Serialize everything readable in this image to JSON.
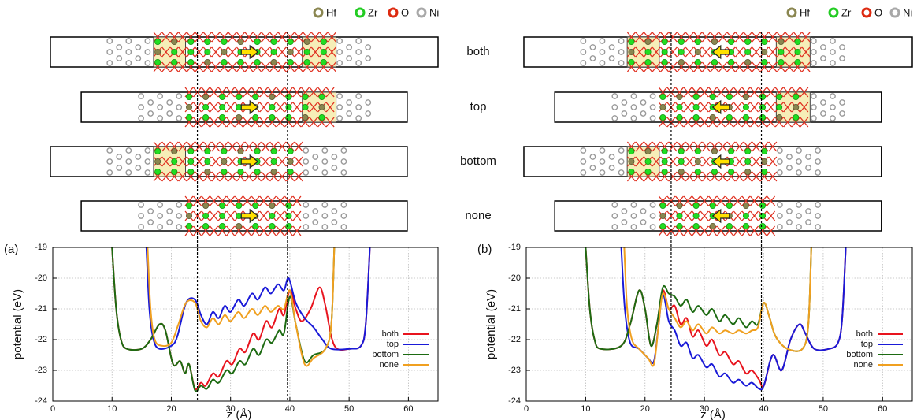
{
  "atom_legend": [
    "Hf",
    "Zr",
    "O",
    "Ni"
  ],
  "structure_labels": [
    "both",
    "top",
    "bottom",
    "none"
  ],
  "chart_data": [
    {
      "type": "line",
      "panel_label": "(a)",
      "x_label": "z (Å)",
      "y_label": "potential (eV)",
      "xlim": [
        0,
        65
      ],
      "xticks": [
        0,
        10,
        20,
        30,
        40,
        50,
        60
      ],
      "ylim": [
        -24,
        -19
      ],
      "yticks": [
        -19,
        -20,
        -21,
        -22,
        -23,
        -24
      ],
      "grid": true,
      "legend": "lower right",
      "vlines": [
        24.4,
        39.6
      ],
      "series": [
        {
          "name": "both",
          "color": "#e8141e",
          "x": [
            10,
            10.7,
            11.5,
            12.5,
            15,
            16.5,
            18,
            19,
            20.3,
            21.5,
            22.3,
            23,
            24,
            25,
            25.8,
            27,
            28,
            29.3,
            30.3,
            31.5,
            32.5,
            33.8,
            34.8,
            36,
            37,
            38.2,
            39,
            40,
            41,
            42,
            43.5,
            45,
            46,
            47,
            48,
            50,
            52,
            52.8,
            53.5
          ],
          "values": [
            -19,
            -21,
            -22,
            -22.3,
            -22.3,
            -22,
            -21.5,
            -21.7,
            -22.8,
            -22.7,
            -23.1,
            -22.8,
            -23.6,
            -23.4,
            -23.5,
            -23.1,
            -23.2,
            -22.7,
            -22.8,
            -22.3,
            -22.4,
            -21.8,
            -22,
            -21.4,
            -21.6,
            -21,
            -21.2,
            -20.4,
            -21,
            -21.4,
            -21,
            -20.3,
            -20.9,
            -21.9,
            -22.3,
            -22.3,
            -22.2,
            -21.5,
            -19
          ]
        },
        {
          "name": "top",
          "color": "#1a1ad8",
          "x": [
            15.8,
            16.3,
            17,
            18,
            20,
            21,
            22.5,
            24,
            25,
            26,
            27,
            28,
            29,
            30,
            31.3,
            32.3,
            33.6,
            34.6,
            35.8,
            36.8,
            38,
            39,
            39.8,
            41,
            42.5,
            44,
            45.5,
            47,
            50,
            52,
            52.8,
            53.5
          ],
          "values": [
            -19,
            -21,
            -22,
            -22.3,
            -22.2,
            -21.9,
            -20.8,
            -20.7,
            -21.2,
            -21.5,
            -21.1,
            -21.3,
            -20.9,
            -21.1,
            -20.7,
            -20.9,
            -20.5,
            -20.7,
            -20.3,
            -20.5,
            -20.2,
            -20.4,
            -20,
            -20.8,
            -21.3,
            -21.6,
            -22,
            -22.3,
            -22.3,
            -22.2,
            -21.5,
            -19
          ]
        },
        {
          "name": "bottom",
          "color": "#1d6b12",
          "x": [
            10,
            10.7,
            11.5,
            12.5,
            15,
            16.5,
            18,
            19,
            20.3,
            21.5,
            22.3,
            23,
            24,
            25,
            26,
            27,
            28,
            29.3,
            30.3,
            31.5,
            32.5,
            33.8,
            34.8,
            36,
            37,
            38.2,
            39,
            40,
            41,
            42.5,
            44,
            46,
            47,
            47.5
          ],
          "values": [
            -19,
            -21,
            -22,
            -22.3,
            -22.3,
            -22,
            -21.5,
            -21.7,
            -22.8,
            -22.7,
            -23.1,
            -22.8,
            -23.65,
            -23.5,
            -23.6,
            -23.3,
            -23.4,
            -23,
            -23.1,
            -22.7,
            -22.8,
            -22.3,
            -22.5,
            -22,
            -22.1,
            -21.7,
            -21.8,
            -20.6,
            -21.5,
            -22.7,
            -22.5,
            -22.3,
            -21.5,
            -19
          ]
        },
        {
          "name": "none",
          "color": "#f0a020",
          "x": [
            16,
            16.5,
            17.2,
            18.5,
            20,
            21.2,
            22.5,
            24,
            25,
            26,
            27,
            28,
            29,
            30,
            31.3,
            32.3,
            33.6,
            34.6,
            35.8,
            36.8,
            38,
            39,
            40,
            41,
            42.5,
            44,
            46,
            47,
            47.5
          ],
          "values": [
            -19,
            -21,
            -22,
            -22.2,
            -22.1,
            -21.5,
            -20.8,
            -20.8,
            -21.4,
            -21.6,
            -21.3,
            -21.5,
            -21.2,
            -21.4,
            -21.1,
            -21.3,
            -21,
            -21.2,
            -20.9,
            -21.1,
            -20.9,
            -21,
            -20.4,
            -21.5,
            -22.8,
            -22.6,
            -22.3,
            -21.5,
            -19
          ]
        }
      ]
    },
    {
      "type": "line",
      "panel_label": "(b)",
      "x_label": "z (Å)",
      "y_label": "potential (eV)",
      "xlim": [
        0,
        65
      ],
      "xticks": [
        0,
        10,
        20,
        30,
        40,
        50,
        60
      ],
      "ylim": [
        -24,
        -19
      ],
      "yticks": [
        -19,
        -20,
        -21,
        -22,
        -23,
        -24
      ],
      "grid": true,
      "legend": "lower right",
      "vlines": [
        24.4,
        39.6
      ],
      "series": [
        {
          "name": "both",
          "color": "#e8141e",
          "x": [
            10,
            10.7,
            11.5,
            12.5,
            16,
            17.5,
            19,
            20,
            21,
            22,
            23,
            24,
            25,
            26,
            27,
            28,
            29,
            30.3,
            31.3,
            32.5,
            33.5,
            34.8,
            35.8,
            37,
            38,
            39.2,
            40,
            41.5,
            43,
            44.5,
            46,
            47,
            48.5,
            51,
            52.5,
            53.2,
            53.8
          ],
          "values": [
            -19,
            -21,
            -22,
            -22.3,
            -22.2,
            -21.5,
            -20.4,
            -21,
            -22.2,
            -21.5,
            -20.4,
            -21,
            -20.9,
            -21.5,
            -21.3,
            -21.9,
            -21.7,
            -22.2,
            -22,
            -22.5,
            -22.4,
            -22.8,
            -22.7,
            -23.1,
            -23,
            -23.3,
            -23.5,
            -22.5,
            -23,
            -22,
            -21.5,
            -21.8,
            -22.3,
            -22.3,
            -22.1,
            -21.3,
            -19
          ]
        },
        {
          "name": "top",
          "color": "#1a1ad8",
          "x": [
            16,
            16.6,
            17.5,
            19,
            20.5,
            21.5,
            22.3,
            23,
            24,
            25,
            26,
            27,
            28,
            29,
            30.3,
            31.3,
            32.5,
            33.5,
            34.8,
            35.8,
            37,
            38,
            39.2,
            40,
            41.5,
            43,
            44.5,
            46,
            47,
            48.5,
            51,
            52.5,
            53.2,
            53.8
          ],
          "values": [
            -19,
            -21,
            -22.1,
            -22.3,
            -22.6,
            -22.7,
            -21.5,
            -20.5,
            -21.4,
            -21.7,
            -22.2,
            -22.1,
            -22.6,
            -22.5,
            -22.9,
            -22.8,
            -23.2,
            -23.1,
            -23.4,
            -23.3,
            -23.5,
            -23.4,
            -23.6,
            -23.5,
            -22.5,
            -23,
            -22,
            -21.5,
            -21.8,
            -22.3,
            -22.3,
            -22.1,
            -21.3,
            -19
          ]
        },
        {
          "name": "bottom",
          "color": "#1d6b12",
          "x": [
            10,
            10.7,
            11.5,
            12.5,
            16,
            17.5,
            19,
            20,
            21,
            22,
            23,
            24,
            25,
            26,
            27,
            28,
            29,
            30.3,
            31.3,
            32.5,
            33.5,
            34.8,
            35.8,
            37,
            38,
            39,
            40,
            41,
            42,
            44,
            46.5,
            47.5,
            48
          ],
          "values": [
            -19,
            -21,
            -22,
            -22.3,
            -22.2,
            -21.5,
            -20.4,
            -21,
            -22.2,
            -21.5,
            -20.3,
            -20.5,
            -20.6,
            -20.9,
            -20.7,
            -21.1,
            -20.9,
            -21.2,
            -21,
            -21.4,
            -21.2,
            -21.5,
            -21.3,
            -21.6,
            -21.4,
            -21.5,
            -20.8,
            -21.3,
            -21.9,
            -22.3,
            -22.3,
            -21.5,
            -19
          ]
        },
        {
          "name": "none",
          "color": "#f0a020",
          "x": [
            16.5,
            17,
            17.8,
            19,
            20.5,
            21.5,
            22.3,
            23,
            24,
            25,
            26,
            27,
            28,
            29,
            30.3,
            31.3,
            32.5,
            33.5,
            34.8,
            35.8,
            37,
            38,
            39,
            40,
            41,
            42,
            44,
            46.5,
            47.5,
            48
          ],
          "values": [
            -19,
            -21,
            -22,
            -22.3,
            -22.6,
            -22.8,
            -21.5,
            -20.5,
            -21,
            -21.3,
            -21.6,
            -21.4,
            -21.7,
            -21.5,
            -21.8,
            -21.6,
            -21.8,
            -21.7,
            -21.8,
            -21.7,
            -21.8,
            -21.7,
            -21.6,
            -20.8,
            -21.3,
            -21.9,
            -22.3,
            -22.3,
            -21.5,
            -19
          ]
        }
      ]
    }
  ]
}
